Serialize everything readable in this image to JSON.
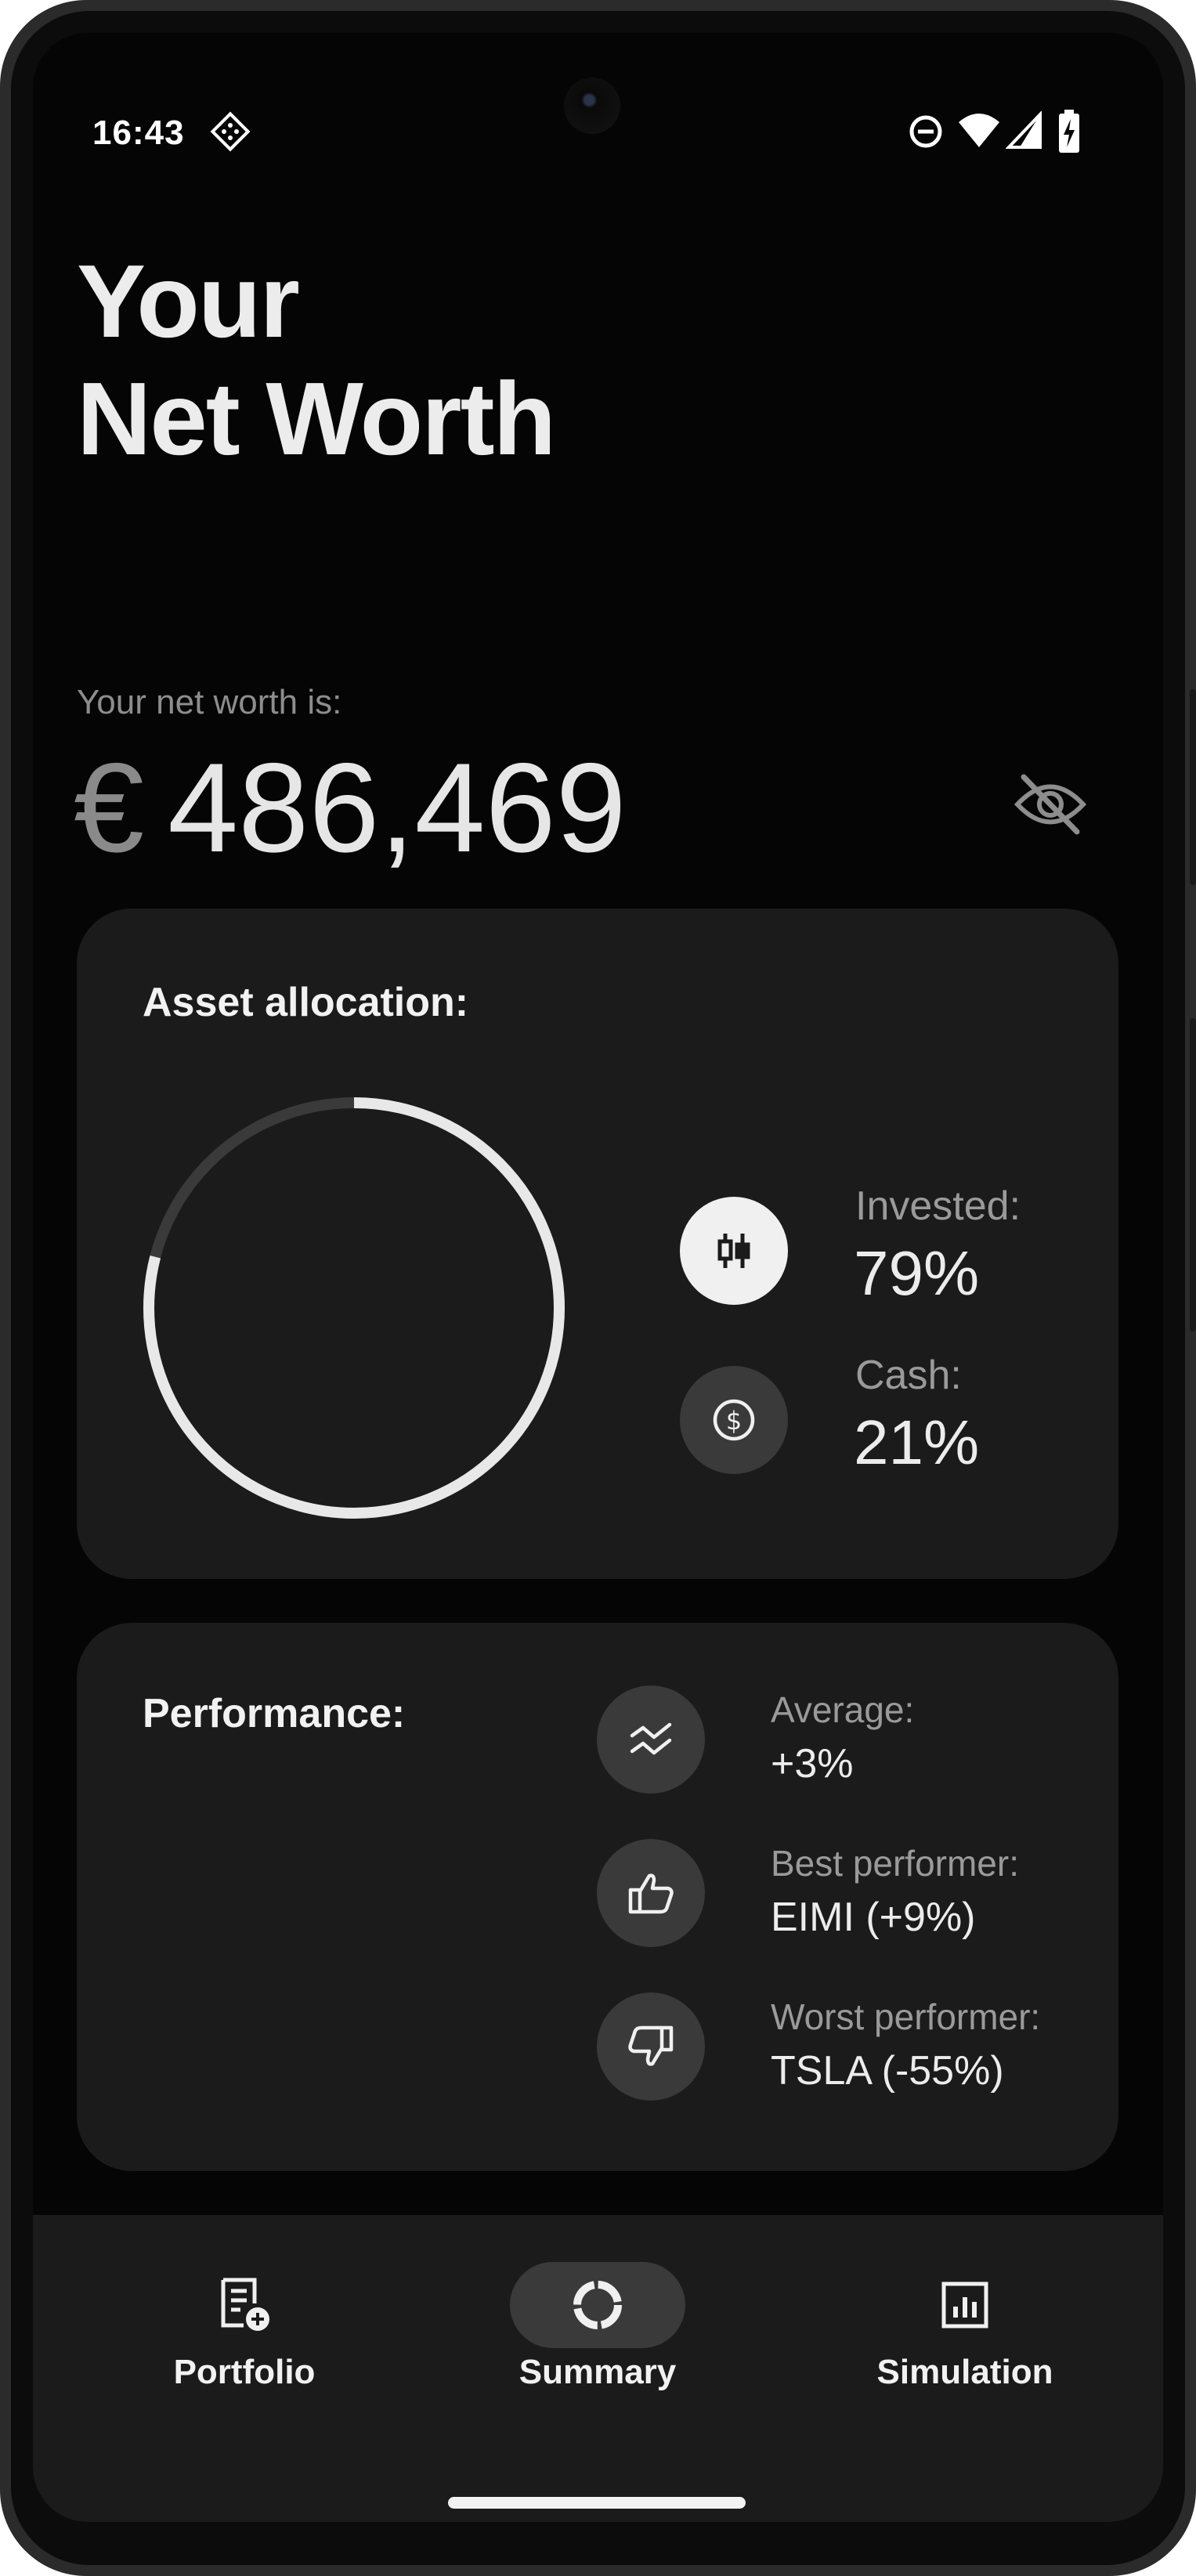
{
  "status_bar": {
    "time": "16:43"
  },
  "header": {
    "title_line1": "Your",
    "title_line2": "Net Worth"
  },
  "net_worth": {
    "label": "Your net worth is:",
    "currency": "€",
    "amount": "486,469"
  },
  "asset_allocation": {
    "title": "Asset allocation:",
    "invested": {
      "label": "Invested:",
      "value": "79%",
      "fraction": 0.79
    },
    "cash": {
      "label": "Cash:",
      "value": "21%",
      "fraction": 0.21
    }
  },
  "performance": {
    "title": "Performance:",
    "average": {
      "label": "Average:",
      "value": "+3%"
    },
    "best": {
      "label": "Best performer:",
      "value": "EIMI (+9%)"
    },
    "worst": {
      "label": "Worst performer:",
      "value": "TSLA (-55%)"
    }
  },
  "nav": {
    "portfolio": "Portfolio",
    "summary": "Summary",
    "simulation": "Simulation",
    "active": "summary"
  },
  "colors": {
    "background": "#050505",
    "card": "#1b1b1b",
    "invested_ring": "#e8e8e8",
    "cash_ring": "#3a3a3a",
    "icon_circle_dark": "#3a3a3a",
    "icon_circle_light": "#f0f0f0"
  },
  "icons": {
    "status": [
      "assistant-icon",
      "do-not-disturb-icon",
      "wifi-icon",
      "signal-icon",
      "battery-charging-icon"
    ],
    "hide_value": "eye-off-icon",
    "invested": "candlestick-icon",
    "cash": "dollar-coin-icon",
    "average": "trend-icon",
    "best": "thumbs-up-icon",
    "worst": "thumbs-down-icon",
    "nav_portfolio": "document-add-icon",
    "nav_summary": "donut-icon",
    "nav_simulation": "bar-chart-icon"
  }
}
